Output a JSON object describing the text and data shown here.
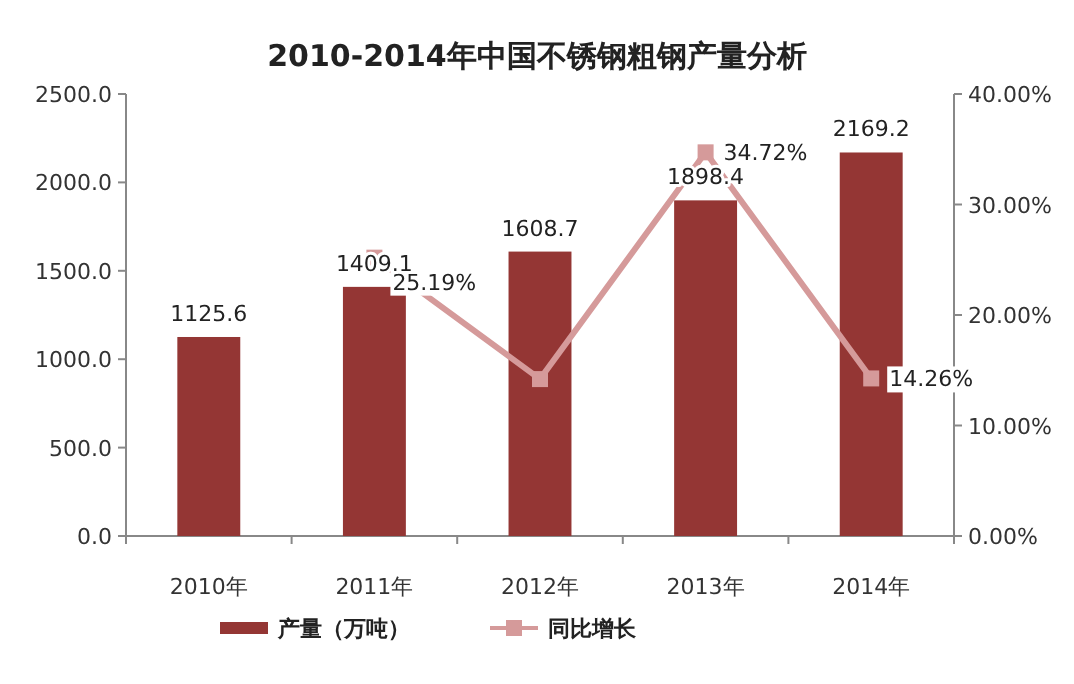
{
  "chart_data": {
    "type": "bar",
    "title": "2010-2014年中国不锈钢粗钢产量分析",
    "categories": [
      "2010年",
      "2011年",
      "2012年",
      "2013年",
      "2014年"
    ],
    "series": [
      {
        "name": "产量（万吨）",
        "color": "#943634",
        "values": [
          1125.6,
          1409.1,
          1608.7,
          1898.4,
          2169.2
        ],
        "value_labels": [
          "1125.6",
          "1409.1",
          "1608.7",
          "1898.4",
          "2169.2"
        ]
      },
      {
        "name": "同比增长",
        "type": "line",
        "axis": "y2",
        "color": "#d59a9a",
        "marker": "square",
        "values": [
          null,
          25.19,
          14.2,
          34.72,
          14.26
        ],
        "value_labels": [
          null,
          "25.19%",
          null,
          "34.72%",
          "14.26%"
        ]
      }
    ],
    "ylim": [
      0,
      2500
    ],
    "yticks": [
      {
        "value": 0,
        "label": "0.0"
      },
      {
        "value": 500,
        "label": "500.0"
      },
      {
        "value": 1000,
        "label": "1000.0"
      },
      {
        "value": 1500,
        "label": "1500.0"
      },
      {
        "value": 2000,
        "label": "2000.0"
      },
      {
        "value": 2500,
        "label": "2500.0"
      }
    ],
    "y2lim": [
      0,
      40
    ],
    "y2ticks": [
      {
        "value": 0,
        "label": "0.00%"
      },
      {
        "value": 10,
        "label": "10.00%"
      },
      {
        "value": 20,
        "label": "20.00%"
      },
      {
        "value": 30,
        "label": "30.00%"
      },
      {
        "value": 40,
        "label": "40.00%"
      }
    ],
    "legend": "bottom",
    "grid": false
  }
}
